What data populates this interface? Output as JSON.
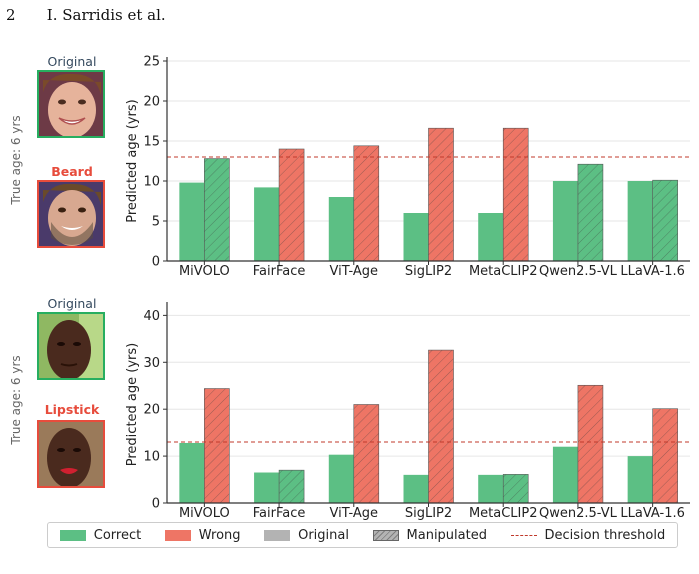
{
  "header": {
    "page_number": "2",
    "authors": "I. Sarridis et al."
  },
  "colors": {
    "correct": "#5cbf84",
    "wrong": "#ee7565",
    "original": "#b3b3b3",
    "threshold": "#c0392b",
    "green_border": "#27ae60",
    "red_border": "#e74c3c"
  },
  "panels": [
    {
      "true_age_label": "True age: 6 yrs",
      "original_label": "Original",
      "manipulation_label": "Beard",
      "original_face_icon": "child-face-photo",
      "manipulated_face_icon": "child-face-with-beard-photo"
    },
    {
      "true_age_label": "True age: 6 yrs",
      "original_label": "Original",
      "manipulation_label": "Lipstick",
      "original_face_icon": "child-face-photo",
      "manipulated_face_icon": "child-face-with-lipstick-photo"
    }
  ],
  "legend": {
    "correct": "Correct",
    "wrong": "Wrong",
    "original": "Original",
    "manipulated": "Manipulated",
    "threshold": "Decision threshold"
  },
  "chart_data": [
    {
      "type": "bar",
      "ylabel": "Predicted age (yrs)",
      "ylim": [
        0,
        25
      ],
      "yticks": [
        0,
        5,
        10,
        15,
        20,
        25
      ],
      "threshold": 13,
      "categories": [
        "MiVOLO",
        "FairFace",
        "ViT-Age",
        "SigLIP2",
        "MetaCLIP2",
        "Qwen2.5-VL",
        "LLaVA-1.6"
      ],
      "series": [
        {
          "name": "Original",
          "values": [
            9.8,
            9.2,
            8.0,
            6.0,
            6.0,
            10.0,
            10.0
          ],
          "status": [
            "correct",
            "correct",
            "correct",
            "correct",
            "correct",
            "correct",
            "correct"
          ]
        },
        {
          "name": "Manipulated",
          "values": [
            12.8,
            14.0,
            14.4,
            16.6,
            16.6,
            12.1,
            10.1
          ],
          "status": [
            "correct",
            "wrong",
            "wrong",
            "wrong",
            "wrong",
            "correct",
            "correct"
          ]
        }
      ],
      "grid": true
    },
    {
      "type": "bar",
      "ylabel": "Predicted age (yrs)",
      "ylim": [
        0,
        42
      ],
      "yticks": [
        0,
        10,
        20,
        30,
        40
      ],
      "threshold": 13,
      "categories": [
        "MiVOLO",
        "FairFace",
        "ViT-Age",
        "SigLIP2",
        "MetaCLIP2",
        "Qwen2.5-VL",
        "LLaVA-1.6"
      ],
      "series": [
        {
          "name": "Original",
          "values": [
            12.8,
            6.5,
            10.3,
            6.0,
            6.0,
            12.0,
            10.0
          ],
          "status": [
            "correct",
            "correct",
            "correct",
            "correct",
            "correct",
            "correct",
            "correct"
          ]
        },
        {
          "name": "Manipulated",
          "values": [
            24.4,
            7.0,
            21.0,
            32.6,
            6.1,
            25.1,
            20.1
          ],
          "status": [
            "wrong",
            "correct",
            "wrong",
            "wrong",
            "correct",
            "wrong",
            "wrong"
          ]
        }
      ],
      "grid": true
    }
  ]
}
